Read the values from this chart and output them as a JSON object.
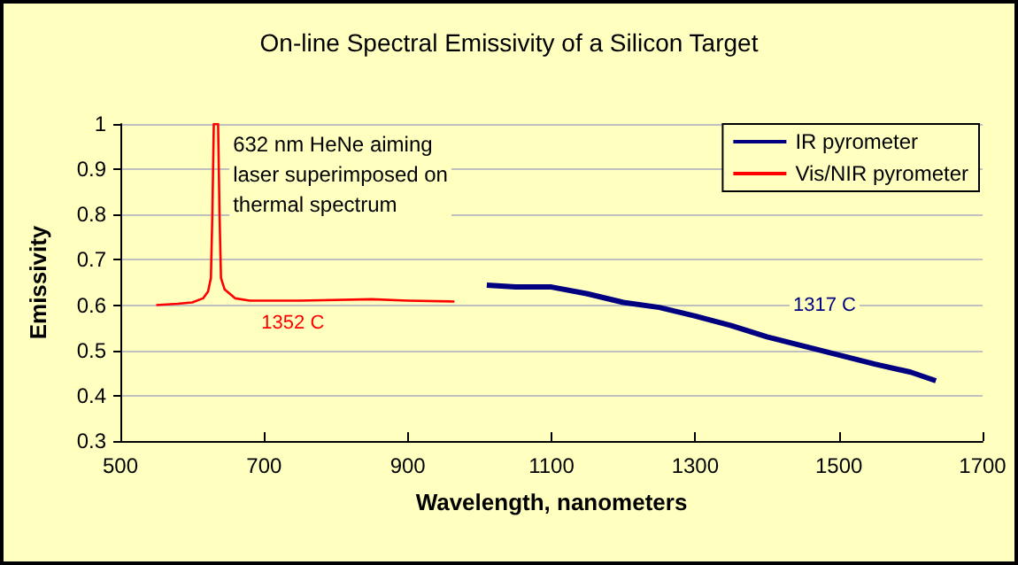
{
  "chart_data": {
    "type": "line",
    "title": "On-line Spectral Emissivity of a Silicon Target",
    "xlabel": "Wavelength, nanometers",
    "ylabel": "Emissivity",
    "xlim": [
      500,
      1700
    ],
    "xticks": [
      500,
      700,
      900,
      1100,
      1300,
      1500,
      1700
    ],
    "ylim": [
      0.3,
      1
    ],
    "yticks": [
      0.3,
      0.4,
      0.5,
      0.6,
      0.7,
      0.8,
      0.9,
      1
    ],
    "grid": "y",
    "legend": "top right",
    "marker": "none",
    "line_style": "solid",
    "series": [
      {
        "name": "IR pyrometer",
        "color": "#000080",
        "x": [
          1010,
          1050,
          1080,
          1100,
          1150,
          1200,
          1250,
          1300,
          1350,
          1400,
          1450,
          1500,
          1550,
          1600,
          1635
        ],
        "values": [
          0.644,
          0.64,
          0.64,
          0.64,
          0.625,
          0.606,
          0.595,
          0.576,
          0.555,
          0.53,
          0.51,
          0.49,
          0.47,
          0.452,
          0.433
        ]
      },
      {
        "name": "Vis/NIR pyrometer",
        "color": "#ff0000",
        "x": [
          550,
          580,
          600,
          615,
          622,
          626,
          628,
          630,
          632,
          634,
          636,
          638,
          640,
          645,
          660,
          680,
          750,
          850,
          900,
          965
        ],
        "values": [
          0.6,
          0.603,
          0.606,
          0.615,
          0.63,
          0.66,
          0.8,
          1,
          1,
          1,
          1,
          0.8,
          0.66,
          0.635,
          0.615,
          0.61,
          0.61,
          0.613,
          0.61,
          0.608
        ]
      }
    ],
    "annotations": [
      {
        "text": "632 nm HeNe aiming\nlaser superimposed on\nthermal spectrum",
        "x": 632,
        "y": 1
      },
      {
        "text": "1352 C",
        "x": 740,
        "y": 0.56
      },
      {
        "text": "1317 C",
        "x": 1480,
        "y": 0.6
      }
    ]
  }
}
